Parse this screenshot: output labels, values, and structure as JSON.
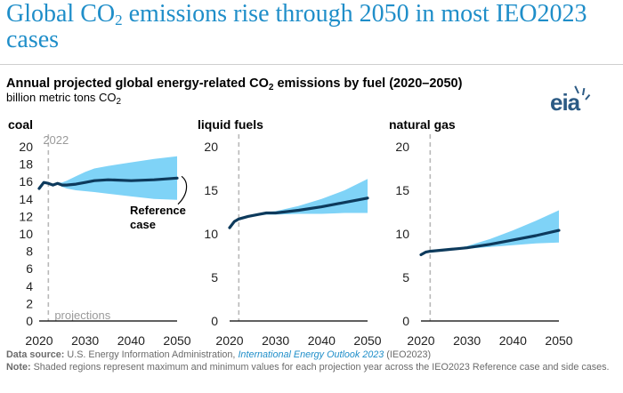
{
  "page": {
    "headline_pre": "Global CO",
    "headline_sub": "2",
    "headline_post": " emissions rise through 2050 in most IEO2023 cases",
    "subtitle_pre": "Annual projected global energy-related CO",
    "subtitle_sub": "2",
    "subtitle_post": " emissions by fuel (2020–2050)",
    "units_pre": "billion metric tons CO",
    "units_sub": "2",
    "logo": "eia",
    "source_label": "Data source:",
    "source_pre": " U.S. Energy Information Administration, ",
    "source_link": "International Energy Outlook 2023",
    "source_post": " (IEO2023)",
    "note_label": "Note:",
    "note_text": " Shaded regions represent maximum and minimum values for each projection year across the IEO2023 Reference case and side cases."
  },
  "colors": {
    "line": "#0d3a5c",
    "band": "#7fd3f7",
    "divider": "#b8b8b8",
    "accent": "#1f8ec9"
  },
  "chart_data": [
    {
      "type": "area",
      "title": "coal",
      "xlim": [
        2020,
        2050
      ],
      "ylim": [
        0,
        20
      ],
      "xticks": [
        2020,
        2030,
        2040,
        2050
      ],
      "yticks": [
        0,
        2,
        4,
        6,
        8,
        10,
        12,
        14,
        16,
        18,
        20
      ],
      "divider_x": 2022,
      "divider_top_label": "2022",
      "divider_bottom_label": "projections",
      "annotation": [
        "Reference",
        "case"
      ],
      "x": [
        2020,
        2021,
        2022,
        2023,
        2024,
        2025,
        2026,
        2028,
        2030,
        2032,
        2035,
        2040,
        2045,
        2050
      ],
      "series": [
        {
          "name": "Reference case",
          "values": [
            15.2,
            15.9,
            15.8,
            15.6,
            15.8,
            15.6,
            15.6,
            15.7,
            15.9,
            16.1,
            16.2,
            16.1,
            16.2,
            16.4
          ]
        },
        {
          "name": "max",
          "values": [
            15.2,
            15.9,
            15.8,
            15.6,
            15.9,
            15.9,
            16.1,
            16.6,
            17.1,
            17.5,
            17.8,
            18.2,
            18.6,
            18.9
          ]
        },
        {
          "name": "min",
          "values": [
            15.2,
            15.9,
            15.8,
            15.6,
            15.7,
            15.4,
            15.2,
            15.0,
            14.9,
            14.8,
            14.6,
            14.3,
            14.0,
            13.9
          ]
        }
      ]
    },
    {
      "type": "area",
      "title": "liquid fuels",
      "xlim": [
        2020,
        2050
      ],
      "ylim": [
        0,
        20
      ],
      "xticks": [
        2020,
        2030,
        2040,
        2050
      ],
      "yticks": [
        0,
        5,
        10,
        15,
        20
      ],
      "divider_x": 2022,
      "x": [
        2020,
        2021,
        2022,
        2024,
        2026,
        2028,
        2030,
        2035,
        2040,
        2045,
        2050
      ],
      "series": [
        {
          "name": "Reference case",
          "values": [
            10.7,
            11.4,
            11.7,
            12.0,
            12.2,
            12.4,
            12.4,
            12.7,
            13.1,
            13.6,
            14.1
          ]
        },
        {
          "name": "max",
          "values": [
            10.7,
            11.4,
            11.7,
            12.1,
            12.3,
            12.5,
            12.6,
            13.2,
            14.0,
            15.0,
            16.3
          ]
        },
        {
          "name": "min",
          "values": [
            10.7,
            11.4,
            11.7,
            11.9,
            12.1,
            12.2,
            12.2,
            12.3,
            12.3,
            12.4,
            12.4
          ]
        }
      ]
    },
    {
      "type": "area",
      "title": "natural gas",
      "xlim": [
        2020,
        2050
      ],
      "ylim": [
        0,
        20
      ],
      "xticks": [
        2020,
        2030,
        2040,
        2050
      ],
      "yticks": [
        0,
        5,
        10,
        15,
        20
      ],
      "divider_x": 2022,
      "x": [
        2020,
        2021,
        2022,
        2024,
        2026,
        2028,
        2030,
        2035,
        2040,
        2045,
        2050
      ],
      "series": [
        {
          "name": "Reference case",
          "values": [
            7.6,
            7.9,
            8.0,
            8.1,
            8.2,
            8.3,
            8.4,
            8.8,
            9.3,
            9.8,
            10.4
          ]
        },
        {
          "name": "max",
          "values": [
            7.6,
            7.9,
            8.0,
            8.1,
            8.3,
            8.4,
            8.6,
            9.4,
            10.4,
            11.5,
            12.7
          ]
        },
        {
          "name": "min",
          "values": [
            7.6,
            7.9,
            8.0,
            8.1,
            8.2,
            8.2,
            8.3,
            8.5,
            8.7,
            8.9,
            9.0
          ]
        }
      ]
    }
  ]
}
